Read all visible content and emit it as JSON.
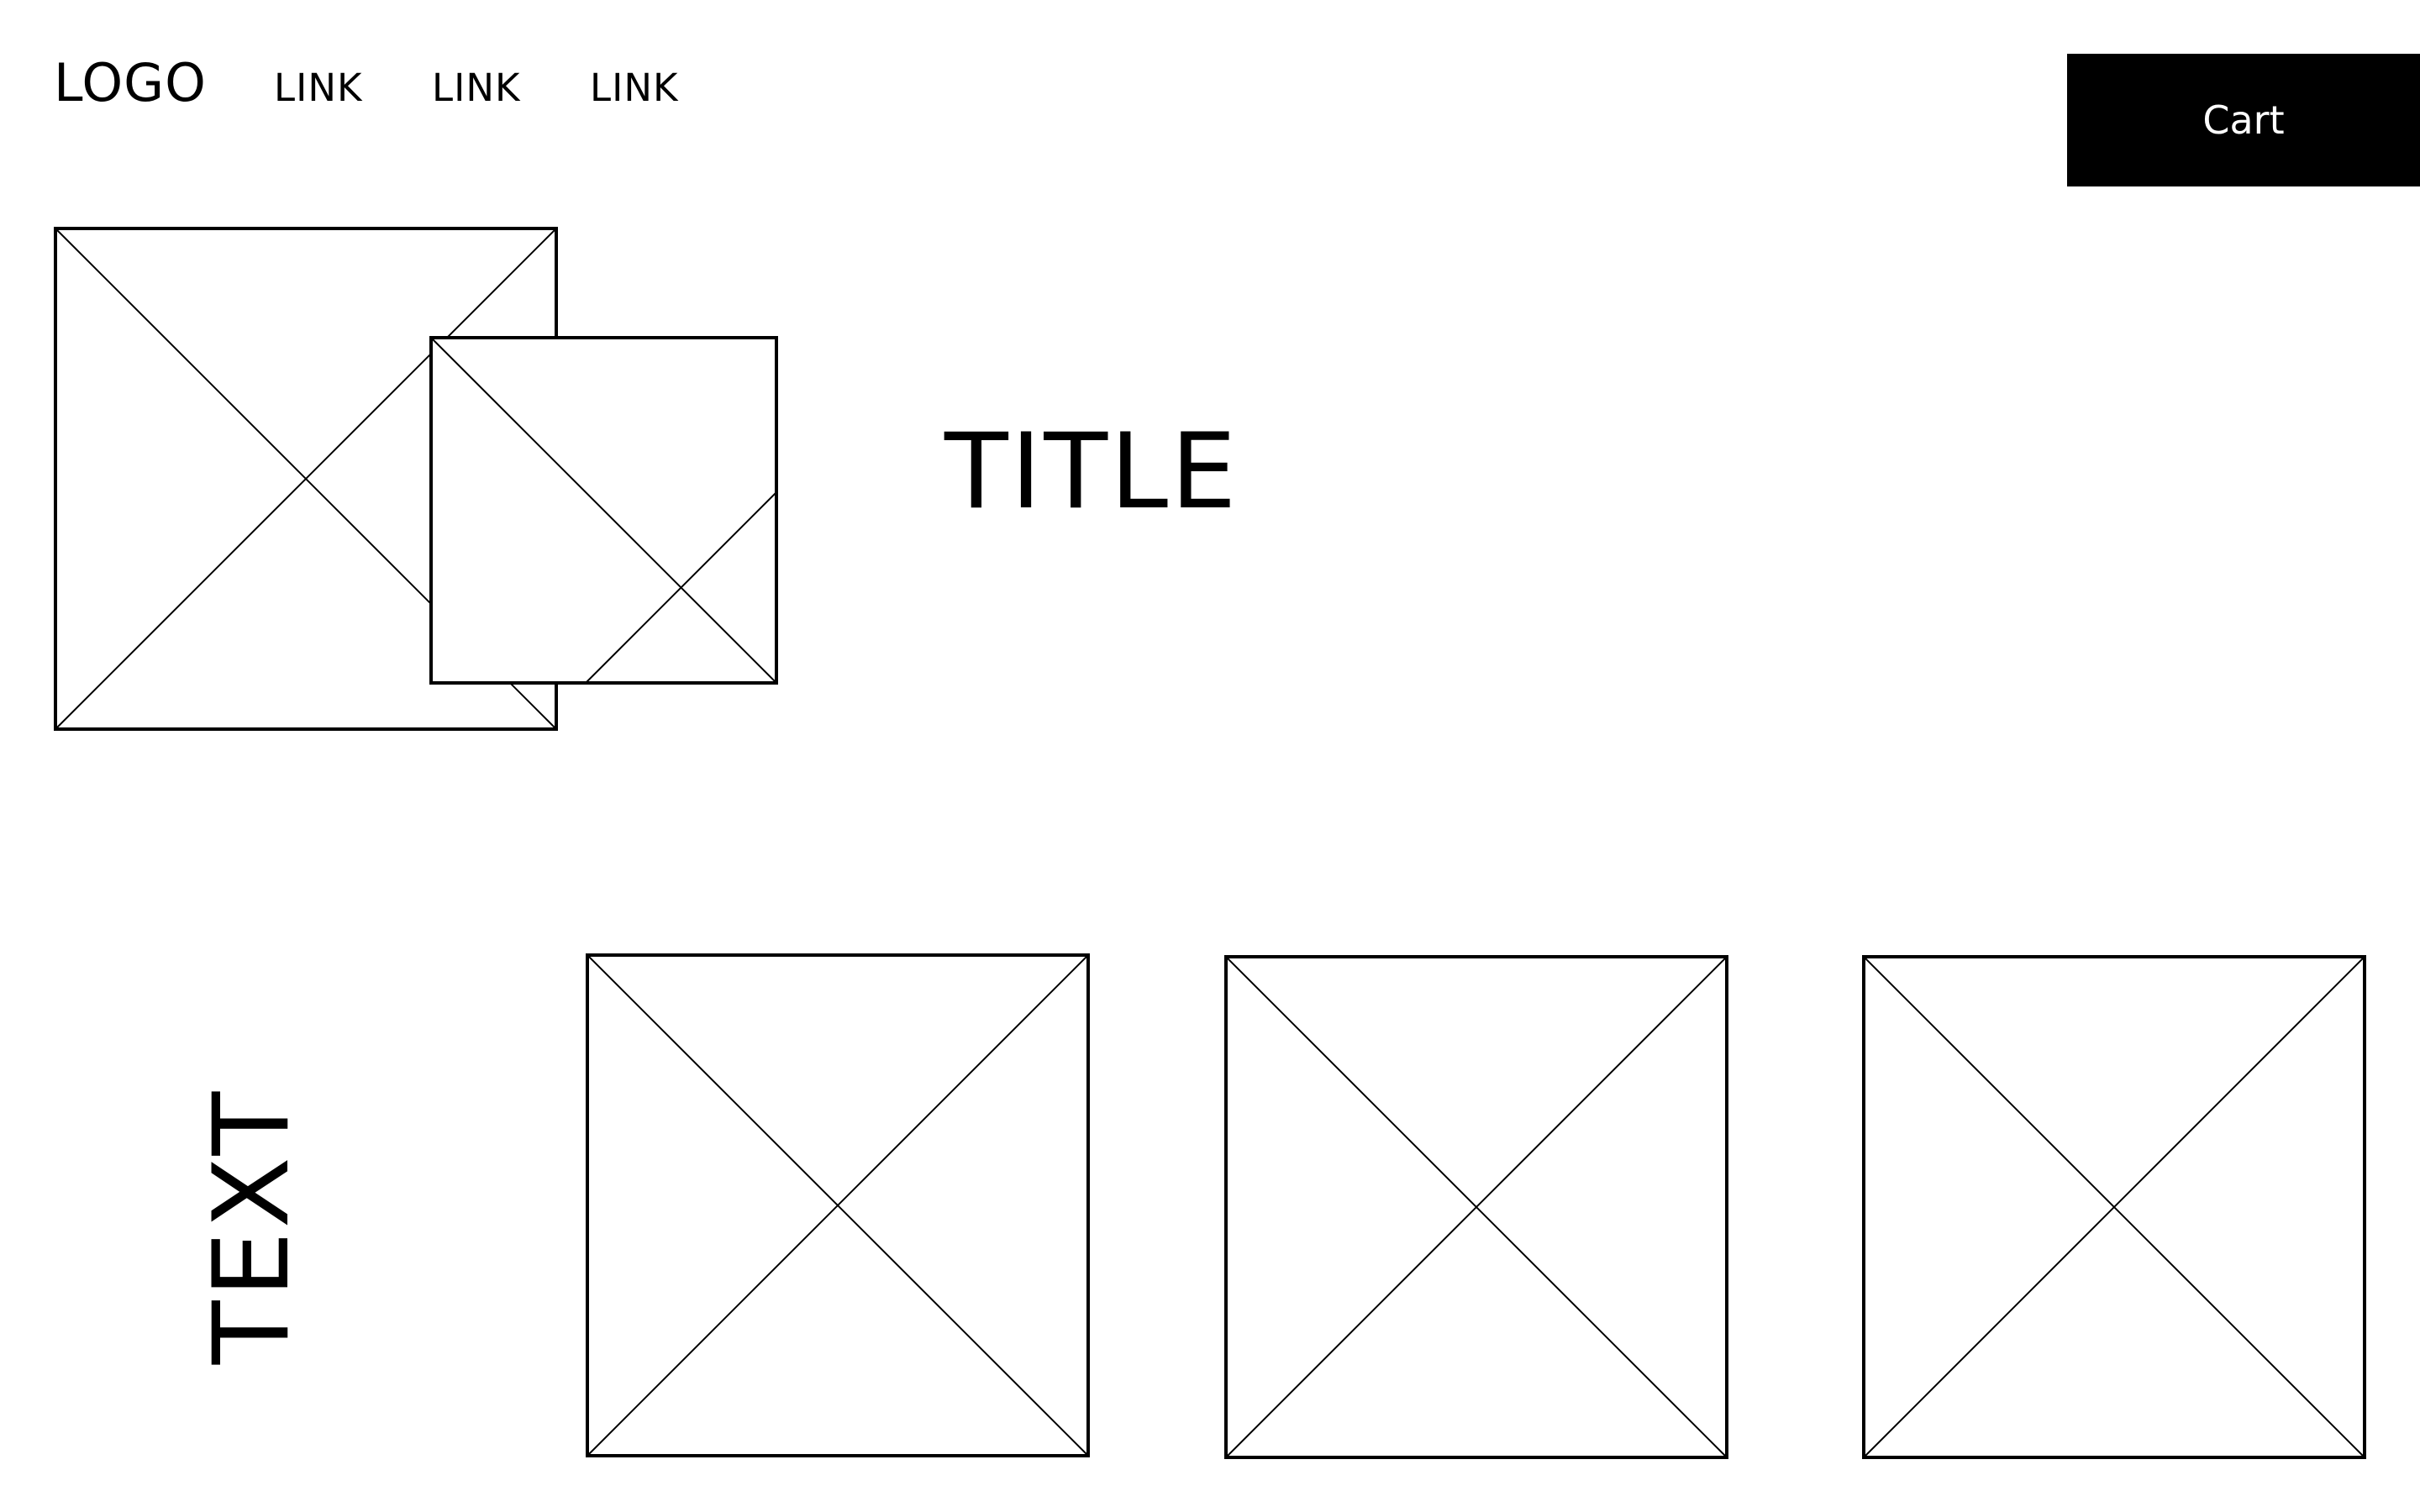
{
  "header": {
    "logo": "LOGO",
    "nav_links": [
      "LINK",
      "LINK",
      "LINK"
    ],
    "cart_label": "Cart"
  },
  "hero": {
    "title": "TITLE"
  },
  "section": {
    "text": "TEXT"
  },
  "colors": {
    "background": "#ffffff",
    "foreground": "#000000",
    "button_background": "#000000",
    "button_text": "#ffffff"
  }
}
